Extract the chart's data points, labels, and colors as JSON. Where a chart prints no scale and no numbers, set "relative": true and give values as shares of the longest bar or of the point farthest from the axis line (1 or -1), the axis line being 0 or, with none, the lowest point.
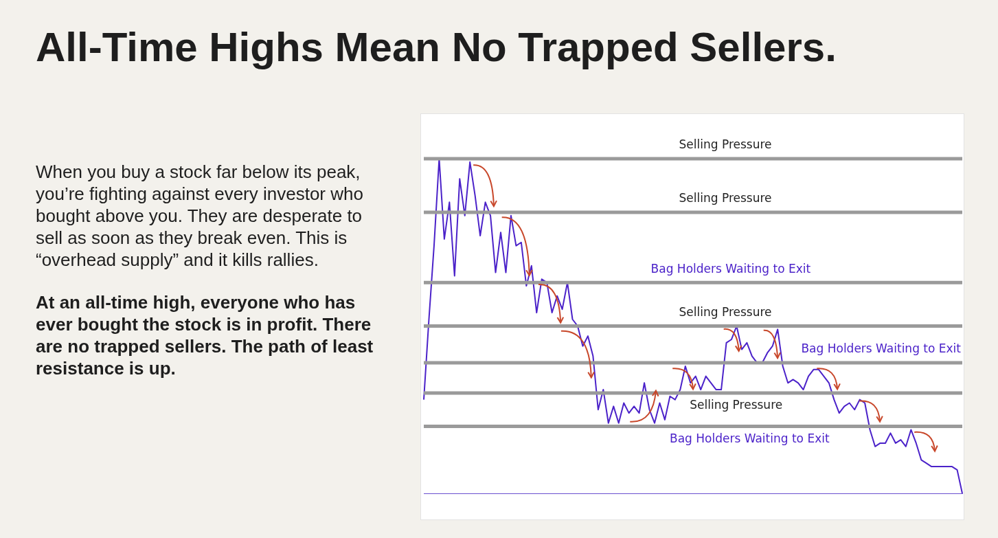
{
  "chart_data": {
    "type": "line",
    "title": "All-Time Highs Mean No Trapped Sellers.",
    "relative": true,
    "annotations": [
      "When you buy a stock far below its peak, you’re fighting against every investor who bought above you. They are desperate to sell as soon as they break even. This is “overhead supply” and it kills rallies.",
      "At an all-time high, everyone who has ever bought the stock is in profit. There are no trapped sellers. The path of least resistance is up."
    ],
    "categories": [
      null,
      null,
      null,
      null,
      null,
      null,
      null,
      null,
      null,
      null,
      null,
      null,
      null,
      null,
      null,
      null,
      null,
      null,
      null,
      null,
      null,
      null,
      null,
      null,
      null,
      null,
      null,
      null,
      null,
      null,
      null,
      null,
      null,
      null,
      null,
      null,
      null,
      null,
      null,
      null,
      null,
      null,
      null,
      null,
      null,
      null,
      null,
      null,
      null,
      null,
      null,
      null,
      null,
      null,
      null,
      null,
      null,
      null,
      null,
      null,
      null,
      null,
      null,
      null,
      null,
      null,
      null,
      null,
      null,
      null,
      null,
      null,
      null,
      null,
      null,
      null,
      null,
      null,
      null,
      null,
      null,
      null,
      null,
      null,
      null,
      null,
      null,
      null,
      null,
      null,
      null,
      null,
      null,
      null,
      null,
      null,
      null,
      null,
      null,
      null,
      null,
      null,
      null,
      null,
      null,
      null
    ],
    "series": [
      {
        "color": "#4b22c9",
        "values": [
          0.28,
          0.52,
          0.74,
          1.0,
          0.76,
          0.87,
          0.65,
          0.94,
          0.83,
          0.99,
          0.89,
          0.77,
          0.87,
          0.83,
          0.66,
          0.78,
          0.66,
          0.83,
          0.74,
          0.75,
          0.62,
          0.68,
          0.54,
          0.64,
          0.63,
          0.54,
          0.59,
          0.55,
          0.63,
          0.52,
          0.5,
          0.44,
          0.47,
          0.41,
          0.25,
          0.31,
          0.21,
          0.26,
          0.21,
          0.27,
          0.24,
          0.26,
          0.24,
          0.33,
          0.25,
          0.21,
          0.27,
          0.22,
          0.29,
          0.28,
          0.31,
          0.38,
          0.33,
          0.35,
          0.31,
          0.35,
          0.33,
          0.31,
          0.31,
          0.45,
          0.46,
          0.5,
          0.43,
          0.45,
          0.41,
          0.39,
          0.39,
          0.42,
          0.44,
          0.49,
          0.38,
          0.33,
          0.34,
          0.33,
          0.31,
          0.35,
          0.37,
          0.37,
          0.35,
          0.33,
          0.28,
          0.24,
          0.26,
          0.27,
          0.25,
          0.28,
          0.27,
          0.19,
          0.14,
          0.15,
          0.15,
          0.18,
          0.15,
          0.16,
          0.14,
          0.19,
          0.15,
          0.1,
          0.09,
          0.08,
          0.08,
          0.08,
          0.08,
          0.08,
          0.07,
          0.0
        ]
      }
    ],
    "ref_lines": [
      {
        "axis": "y",
        "value": 1.0,
        "label": "Selling Pressure",
        "color": "#9a9a9a"
      },
      {
        "axis": "y",
        "value": 0.84,
        "label": "Selling Pressure",
        "color": "#9a9a9a"
      },
      {
        "axis": "y",
        "value": 0.63,
        "label": "Bag Holders Waiting to Exit",
        "color": "#9a9a9a"
      },
      {
        "axis": "y",
        "value": 0.5,
        "label": "Selling Pressure",
        "color": "#9a9a9a"
      },
      {
        "axis": "y",
        "value": 0.39,
        "label": "Bag Holders Waiting to Exit",
        "color": "#9a9a9a"
      },
      {
        "axis": "y",
        "value": 0.3,
        "label": "Selling Pressure",
        "color": "#9a9a9a"
      },
      {
        "axis": "y",
        "value": 0.2,
        "label": "Bag Holders Waiting to Exit",
        "color": "#9a9a9a"
      }
    ]
  }
}
